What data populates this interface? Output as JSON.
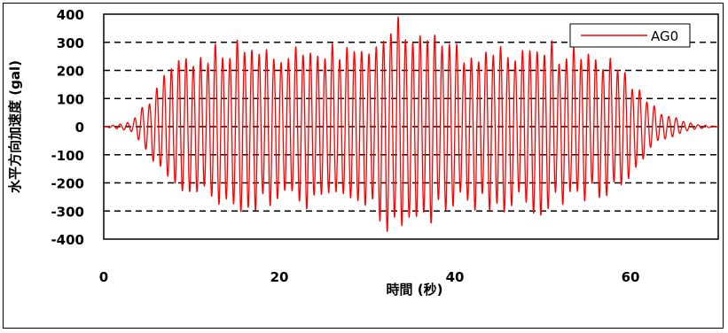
{
  "chart_data": {
    "type": "line",
    "title": "",
    "xlabel": "時間 (秒)",
    "ylabel": "水平方向加速度 (gal)",
    "xlim": [
      0,
      70
    ],
    "ylim": [
      -400,
      400
    ],
    "x_ticks": [
      0,
      20,
      40,
      60
    ],
    "x_tick_labels": [
      "0",
      "20",
      "40",
      "60"
    ],
    "y_ticks": [
      400,
      300,
      200,
      100,
      0,
      -100,
      -200,
      -300,
      -400
    ],
    "y_tick_labels": [
      "400",
      "300",
      "200",
      "100",
      "0",
      "-100",
      "-200",
      "-300",
      "-400"
    ],
    "grid": "horizontal dashed",
    "legend": {
      "position": "top-right"
    },
    "series": [
      {
        "name": "AG0",
        "color": "#ff0000",
        "signal": "oscillating acceleration record, approx. 1.2 Hz",
        "x": [
          0,
          3,
          5,
          8,
          10,
          15,
          20,
          30,
          33,
          40,
          50,
          55,
          58,
          60,
          62,
          64,
          67,
          70
        ],
        "amplitude": [
          0,
          15,
          80,
          210,
          240,
          270,
          255,
          280,
          375,
          260,
          275,
          240,
          220,
          160,
          80,
          40,
          10,
          0
        ]
      }
    ]
  }
}
